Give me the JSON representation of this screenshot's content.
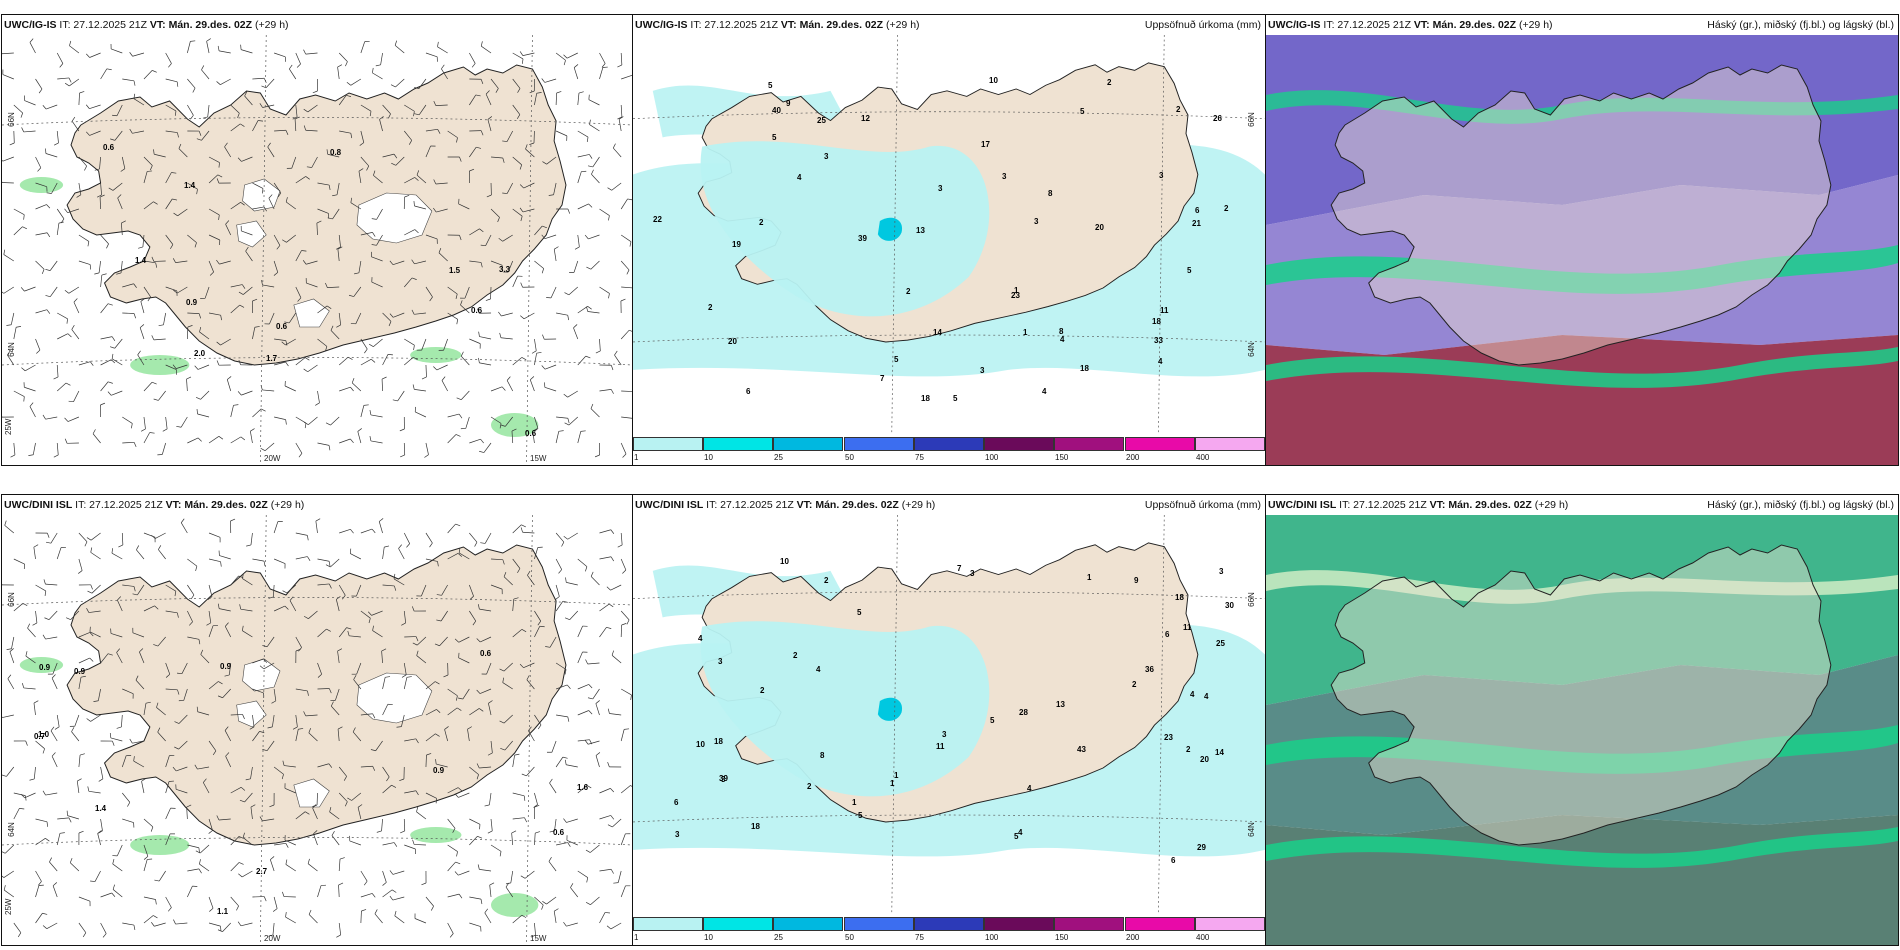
{
  "panels": [
    {
      "model": "UWC/IG-IS",
      "it": "IT: 27.12.2025 21Z",
      "vt": "VT: Mán. 29.des. 02Z",
      "lead": "(+29 h)",
      "type": "wind",
      "values": [
        {
          "t": "0.6"
        },
        {
          "t": "1.4"
        },
        {
          "t": "0.6"
        },
        {
          "t": "0.6"
        },
        {
          "t": "0.6"
        },
        {
          "t": "1.4"
        },
        {
          "t": "1.7"
        },
        {
          "t": "0.9"
        },
        {
          "t": "2.0"
        },
        {
          "t": "1.5"
        },
        {
          "t": "3.3"
        },
        {
          "t": "0.8"
        }
      ],
      "axis": {
        "lon": [
          "20W",
          "15W",
          "25W"
        ],
        "lat": [
          "66N",
          "64N"
        ]
      }
    },
    {
      "model": "UWC/IG-IS",
      "it": "IT: 27.12.2025 21Z",
      "vt": "VT: Mán. 29.des. 02Z",
      "lead": "(+29 h)",
      "type": "precip",
      "right": "Uppsöfnuð úrkoma (mm)",
      "values": [
        {
          "t": "1"
        },
        {
          "t": "2"
        },
        {
          "t": "3"
        },
        {
          "t": "5"
        },
        {
          "t": "4"
        },
        {
          "t": "5"
        },
        {
          "t": "3"
        },
        {
          "t": "2"
        },
        {
          "t": "5"
        },
        {
          "t": "3"
        },
        {
          "t": "4"
        },
        {
          "t": "6"
        },
        {
          "t": "8"
        },
        {
          "t": "10"
        },
        {
          "t": "13"
        },
        {
          "t": "18"
        },
        {
          "t": "19"
        },
        {
          "t": "18"
        },
        {
          "t": "14"
        },
        {
          "t": "9"
        },
        {
          "t": "39"
        },
        {
          "t": "33"
        },
        {
          "t": "40"
        },
        {
          "t": "23"
        },
        {
          "t": "12"
        },
        {
          "t": "7"
        },
        {
          "t": "11"
        },
        {
          "t": "25"
        },
        {
          "t": "20"
        },
        {
          "t": "18"
        },
        {
          "t": "26"
        },
        {
          "t": "5"
        },
        {
          "t": "8"
        },
        {
          "t": "20"
        },
        {
          "t": "17"
        },
        {
          "t": "21"
        },
        {
          "t": "22"
        },
        {
          "t": "6"
        },
        {
          "t": "3"
        },
        {
          "t": "2"
        },
        {
          "t": "5"
        },
        {
          "t": "4"
        },
        {
          "t": "2"
        },
        {
          "t": "3"
        },
        {
          "t": "2"
        },
        {
          "t": "1"
        },
        {
          "t": "4"
        },
        {
          "t": "2"
        },
        {
          "t": "5"
        },
        {
          "t": "3"
        }
      ],
      "cbar": [
        {
          "c": "#b8f2f2",
          "t": "1"
        },
        {
          "c": "#00e5e5",
          "t": "10"
        },
        {
          "c": "#00b8e0",
          "t": "25"
        },
        {
          "c": "#3c6ef0",
          "t": "50"
        },
        {
          "c": "#2c3ab8",
          "t": "75"
        },
        {
          "c": "#6a0a5a",
          "t": "100"
        },
        {
          "c": "#a0107e",
          "t": "150"
        },
        {
          "c": "#e80aa8",
          "t": "200"
        },
        {
          "c": "#f5a8f0",
          "t": "400"
        }
      ],
      "axis": {
        "lat": [
          "66N",
          "64N"
        ]
      }
    },
    {
      "model": "UWC/IG-IS",
      "it": "IT: 27.12.2025 21Z",
      "vt": "VT: Mán. 29.des. 02Z",
      "lead": "(+29 h)",
      "type": "cloud",
      "right": "Háský (gr.), miðský (fj.bl.) og lágský (bl.)"
    },
    {
      "model": "UWC/DINI ISL",
      "it": "IT: 27.12.2025 21Z",
      "vt": "VT: Mán. 29.des. 02Z",
      "lead": "(+29 h)",
      "type": "wind",
      "values": [
        {
          "t": "0.9"
        },
        {
          "t": "1.4"
        },
        {
          "t": "1.1"
        },
        {
          "t": "0.9"
        },
        {
          "t": "0.6"
        },
        {
          "t": "1.0"
        },
        {
          "t": "0.7"
        },
        {
          "t": "0.6"
        },
        {
          "t": "1.6"
        },
        {
          "t": "0.9"
        },
        {
          "t": "0.9"
        },
        {
          "t": "2.7"
        }
      ],
      "axis": {
        "lon": [
          "20W",
          "15W",
          "25W"
        ],
        "lat": [
          "66N",
          "64N"
        ]
      }
    },
    {
      "model": "UWC/DINI ISL",
      "it": "IT: 27.12.2025 21Z",
      "vt": "VT: Mán. 29.des. 02Z",
      "lead": "(+29 h)",
      "type": "precip",
      "right": "Uppsöfnuð úrkoma (mm)",
      "values": [
        {
          "t": "2"
        },
        {
          "t": "3"
        },
        {
          "t": "4"
        },
        {
          "t": "5"
        },
        {
          "t": "2"
        },
        {
          "t": "4"
        },
        {
          "t": "6"
        },
        {
          "t": "8"
        },
        {
          "t": "18"
        },
        {
          "t": "10"
        },
        {
          "t": "7"
        },
        {
          "t": "6"
        },
        {
          "t": "28"
        },
        {
          "t": "25"
        },
        {
          "t": "23"
        },
        {
          "t": "11"
        },
        {
          "t": "14"
        },
        {
          "t": "10"
        },
        {
          "t": "39"
        },
        {
          "t": "36"
        },
        {
          "t": "18"
        },
        {
          "t": "9"
        },
        {
          "t": "29"
        },
        {
          "t": "43"
        },
        {
          "t": "30"
        },
        {
          "t": "5"
        },
        {
          "t": "6"
        },
        {
          "t": "11"
        },
        {
          "t": "18"
        },
        {
          "t": "13"
        },
        {
          "t": "20"
        },
        {
          "t": "2"
        },
        {
          "t": "3"
        },
        {
          "t": "1"
        },
        {
          "t": "3"
        },
        {
          "t": "5"
        },
        {
          "t": "4"
        },
        {
          "t": "2"
        },
        {
          "t": "1"
        },
        {
          "t": "3"
        },
        {
          "t": "4"
        },
        {
          "t": "2"
        },
        {
          "t": "1"
        },
        {
          "t": "3"
        },
        {
          "t": "4"
        },
        {
          "t": "2"
        },
        {
          "t": "1"
        },
        {
          "t": "3"
        },
        {
          "t": "4"
        },
        {
          "t": "5"
        }
      ],
      "cbar": [
        {
          "c": "#b8f2f2",
          "t": "1"
        },
        {
          "c": "#00e5e5",
          "t": "10"
        },
        {
          "c": "#00b8e0",
          "t": "25"
        },
        {
          "c": "#3c6ef0",
          "t": "50"
        },
        {
          "c": "#2c3ab8",
          "t": "75"
        },
        {
          "c": "#6a0a5a",
          "t": "100"
        },
        {
          "c": "#a0107e",
          "t": "150"
        },
        {
          "c": "#e80aa8",
          "t": "200"
        },
        {
          "c": "#f5a8f0",
          "t": "400"
        }
      ],
      "axis": {
        "lat": [
          "66N",
          "64N"
        ]
      }
    },
    {
      "model": "UWC/DINI ISL",
      "it": "IT: 27.12.2025 21Z",
      "vt": "VT: Mán. 29.des. 02Z",
      "lead": "(+29 h)",
      "type": "cloud",
      "right": "Háský (gr.), miðský (fj.bl.) og lágský (bl.)"
    }
  ],
  "colors": {
    "land": "#efe2d2",
    "sea": "#ffffff",
    "precip_light": "#b8f2f2",
    "wind_green": "#7fe08a",
    "high_cloud": "#1fa878",
    "mid_cloud": "#5b4cc0",
    "low_cloud": "#8a1a3a"
  }
}
